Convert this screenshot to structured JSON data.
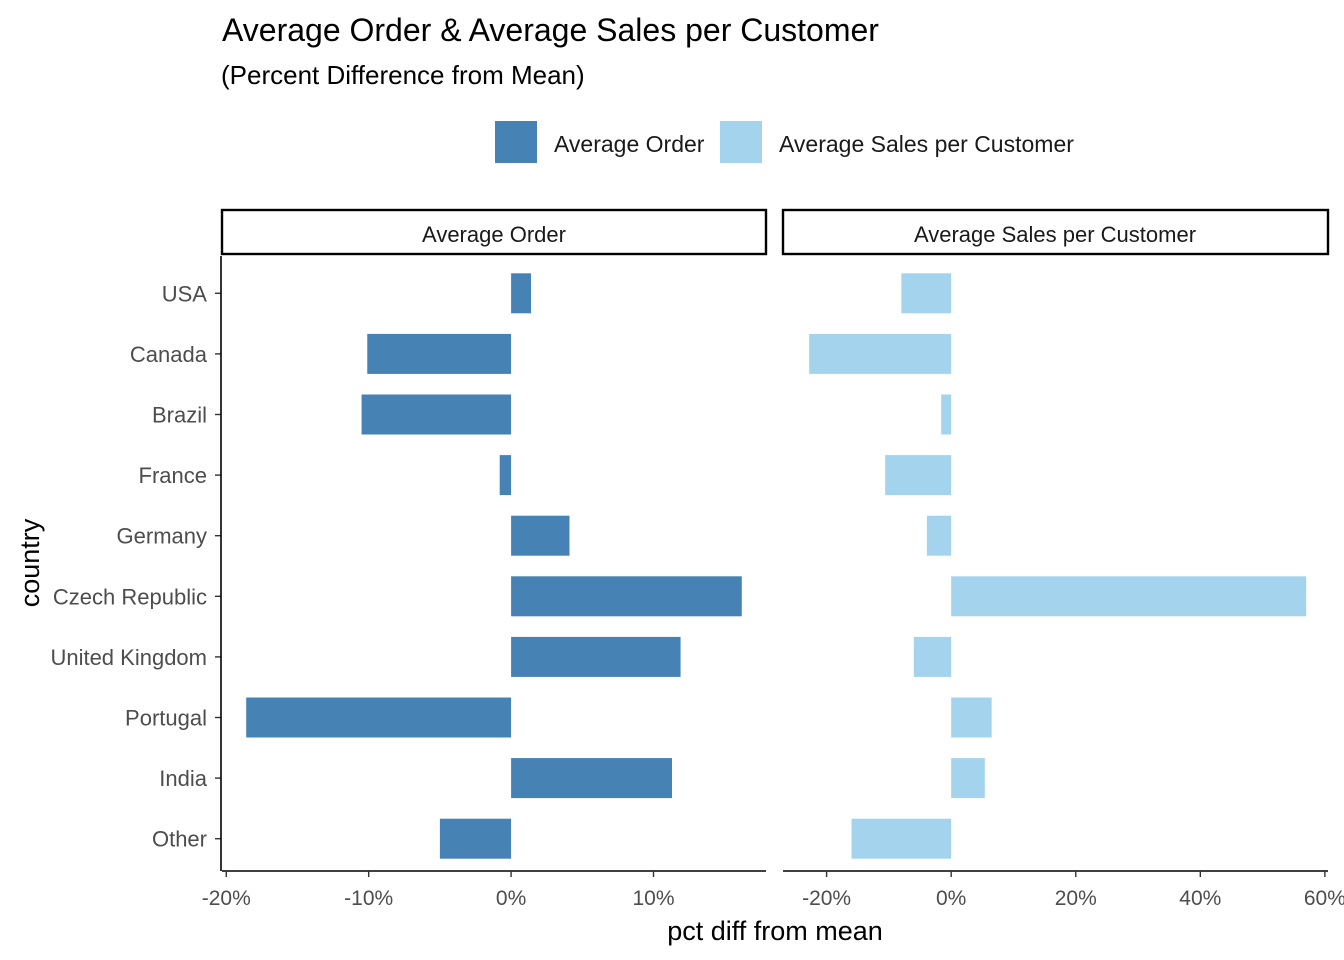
{
  "chart_data": {
    "type": "bar",
    "orientation": "horizontal",
    "title": "Average Order & Average Sales per Customer",
    "subtitle": "(Percent Difference from Mean)",
    "xlabel": "pct diff from mean",
    "ylabel": "country",
    "legend_position": "top",
    "grid": false,
    "categories": [
      "USA",
      "Canada",
      "Brazil",
      "France",
      "Germany",
      "Czech Republic",
      "United Kingdom",
      "Portugal",
      "India",
      "Other"
    ],
    "series": [
      {
        "name": "Average Order",
        "color": "#4682B4",
        "values": [
          1.4,
          -10.1,
          -10.5,
          -0.8,
          4.1,
          16.2,
          11.9,
          -18.6,
          11.3,
          -5.0
        ]
      },
      {
        "name": "Average Sales per Customer",
        "color": "#A4D3EE",
        "values": [
          -8.0,
          -22.8,
          -1.6,
          -10.6,
          -3.9,
          57.0,
          -6.0,
          6.5,
          5.4,
          -16.0
        ]
      }
    ],
    "panels": [
      {
        "strip": "Average Order",
        "xlim": [
          -20.3,
          17.9
        ],
        "ticks": [
          -20,
          -10,
          0,
          10
        ],
        "tick_labels": [
          "-20%",
          "-10%",
          "0%",
          "10%"
        ]
      },
      {
        "strip": "Average Sales per Customer",
        "xlim": [
          -27.0,
          60.5
        ],
        "ticks": [
          -20,
          0,
          20,
          40,
          60
        ],
        "tick_labels": [
          "-20%",
          "0%",
          "20%",
          "40%",
          "60%"
        ]
      }
    ]
  }
}
